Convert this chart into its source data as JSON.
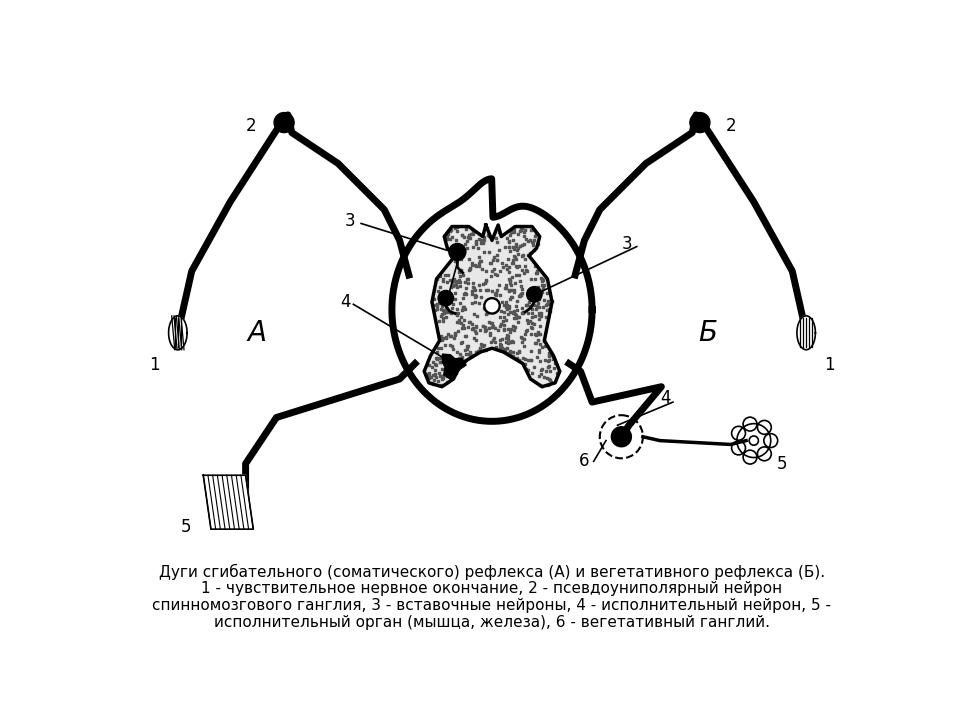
{
  "bg_color": "#ffffff",
  "line_color": "#000000",
  "caption_line1": "Дуги сгибательного (соматического) рефлекса (А) и вегетативного рефлекса (Б).",
  "caption_line2": "1 - чувствительное нервное окончание, 2 - псевдоуниполярный нейрон",
  "caption_line3": "спинномозгового ганглия, 3 - вставочные нейроны, 4 - исполнительный нейрон, 5 -",
  "caption_line4": "исполнительный орган (мышца, железа), 6 - вегетативный ганглий.",
  "label_A": "А",
  "label_B": "Б",
  "figsize": [
    9.6,
    7.2
  ],
  "dpi": 100
}
